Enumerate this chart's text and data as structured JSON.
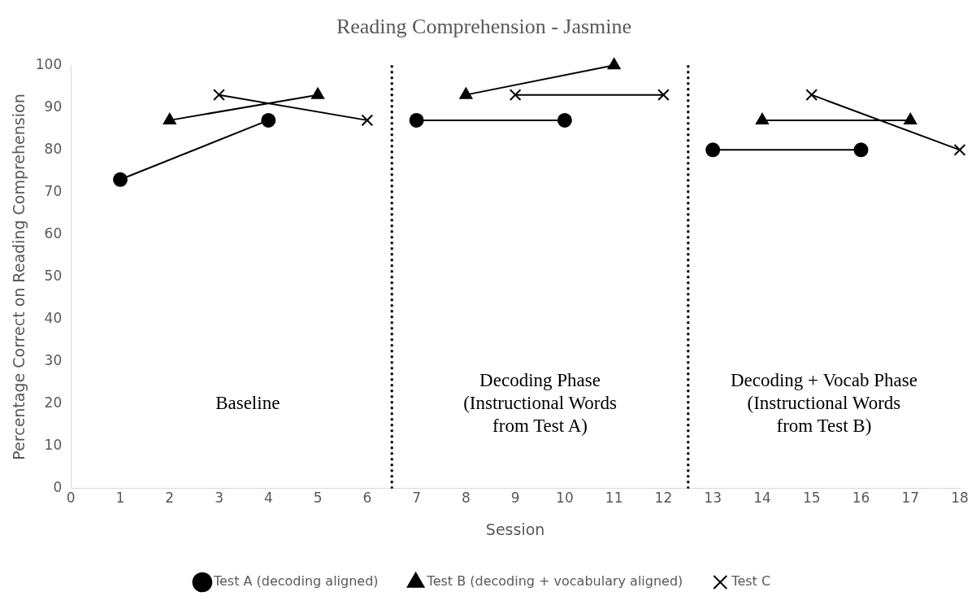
{
  "chart_data": {
    "type": "line",
    "title": "Reading Comprehension - Jasmine",
    "xlabel": "Session",
    "ylabel": "Percentage Correct on Reading Comprehension",
    "xlim": [
      0,
      18
    ],
    "xticks": [
      0,
      1,
      2,
      3,
      4,
      5,
      6,
      7,
      8,
      9,
      10,
      11,
      12,
      13,
      14,
      15,
      16,
      17,
      18
    ],
    "ylim": [
      0,
      100
    ],
    "yticks": [
      0,
      10,
      20,
      30,
      40,
      50,
      60,
      70,
      80,
      90,
      100
    ],
    "grid": false,
    "legend": "bottom",
    "line_style": "solid",
    "series": [
      {
        "name": "Test A (decoding aligned)",
        "color": "#000000",
        "marker": "circle",
        "x": [
          1,
          4,
          null,
          7,
          10,
          null,
          13,
          16
        ],
        "values": [
          73,
          87,
          null,
          87,
          87,
          null,
          80,
          80
        ]
      },
      {
        "name": "Test B (decoding + vocabulary aligned)",
        "color": "#000000",
        "marker": "triangle",
        "x": [
          2,
          5,
          null,
          8,
          11,
          null,
          14,
          17
        ],
        "values": [
          87,
          93,
          null,
          93,
          100,
          null,
          87,
          87
        ]
      },
      {
        "name": "Test C",
        "color": "#000000",
        "marker": "cross",
        "x": [
          3,
          6,
          null,
          9,
          12,
          null,
          15,
          18
        ],
        "values": [
          93,
          87,
          null,
          93,
          93,
          null,
          93,
          80
        ]
      }
    ],
    "ref_lines": [
      {
        "axis": "x",
        "value": 6.5,
        "color": "#000000",
        "line_style": "dotted"
      },
      {
        "axis": "x",
        "value": 12.5,
        "color": "#000000",
        "line_style": "dotted"
      }
    ],
    "annotations": [
      "Baseline",
      "Decoding Phase\n(Instructional Words\nfrom Test A)",
      "Decoding + Vocab Phase\n(Instructional Words\nfrom Test B)"
    ]
  }
}
